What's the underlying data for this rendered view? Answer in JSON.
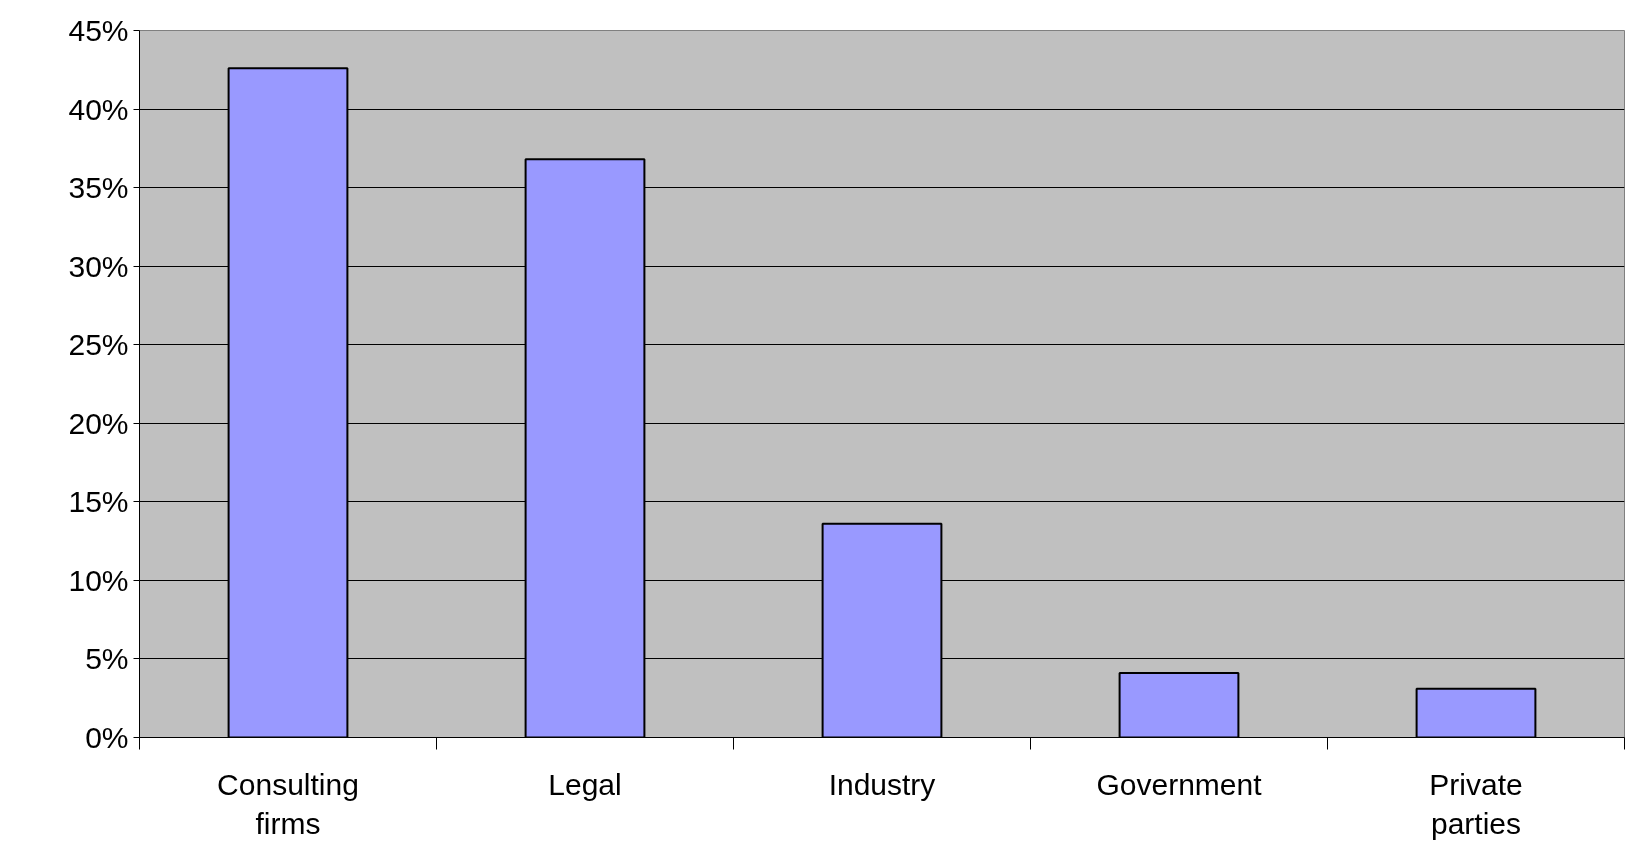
{
  "chart_data": {
    "type": "bar",
    "categories": [
      "Consulting firms",
      "Legal",
      "Industry",
      "Government",
      "Private parties"
    ],
    "values": [
      42.6,
      36.8,
      13.6,
      4.1,
      3.1
    ],
    "color": "#9999ff",
    "ylim": [
      0,
      45
    ],
    "yticks": [
      {
        "value": 0,
        "label": "0%"
      },
      {
        "value": 5,
        "label": "5%"
      },
      {
        "value": 10,
        "label": "10%"
      },
      {
        "value": 15,
        "label": "15%"
      },
      {
        "value": 20,
        "label": "20%"
      },
      {
        "value": 25,
        "label": "25%"
      },
      {
        "value": 30,
        "label": "30%"
      },
      {
        "value": 35,
        "label": "35%"
      },
      {
        "value": 40,
        "label": "40%"
      },
      {
        "value": 45,
        "label": "45%"
      }
    ],
    "grid": "y"
  }
}
